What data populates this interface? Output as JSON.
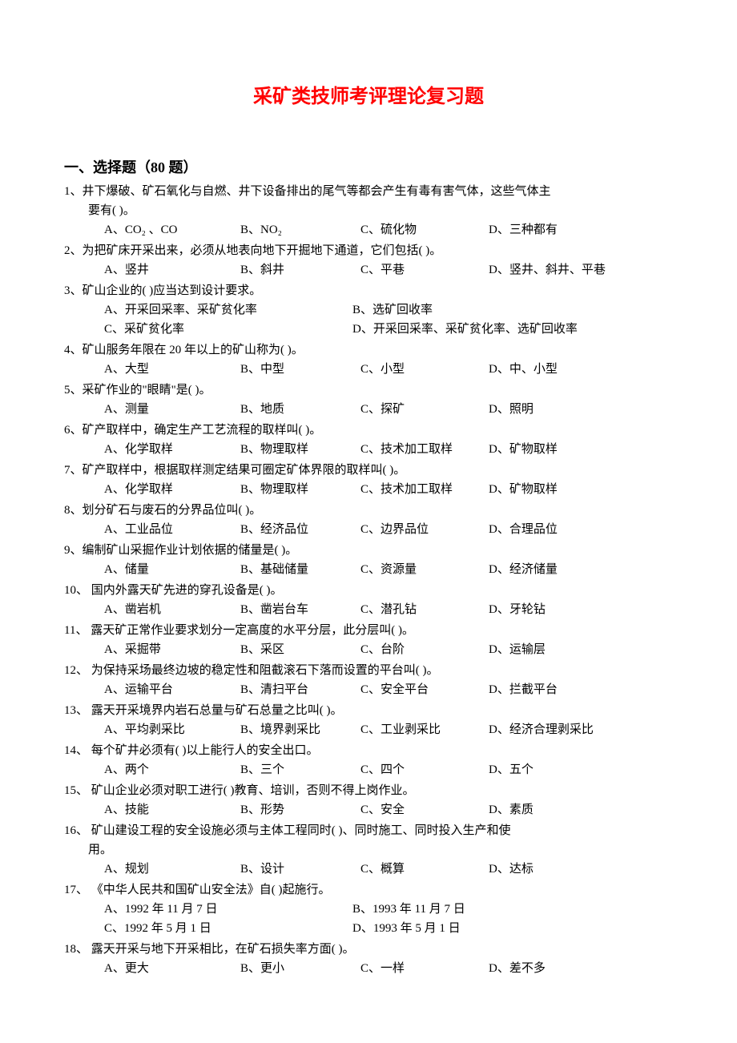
{
  "colors": {
    "title_color": "#ff0000",
    "text_color": "#000000",
    "background": "#ffffff"
  },
  "typography": {
    "title_fontsize": 24,
    "section_fontsize": 18,
    "body_fontsize": 15,
    "font_family": "SimSun"
  },
  "title": "采矿类技师考评理论复习题",
  "section_header": "一、选择题（80 题）",
  "questions": [
    {
      "num": "1、",
      "text": "井下爆破、矿石氧化与自燃、井下设备排出的尾气等都会产生有毒有害气体，这些气体主",
      "text2": "要有(        )。",
      "layout": "4col",
      "opts": [
        "A、CO₂ 、CO",
        "B、NO₂",
        "C、硫化物",
        "D、三种都有"
      ]
    },
    {
      "num": "2、",
      "text": "为把矿床开采出来，必须从地表向地下开掘地下通道，它们包括(        )。",
      "layout": "4col",
      "opts": [
        "A、竖井",
        "B、斜井",
        "C、平巷",
        "D、竖井、斜井、平巷"
      ]
    },
    {
      "num": "3、",
      "text": "矿山企业的(        )应当达到设计要求。",
      "layout": "2col",
      "opts": [
        "A、开采回采率、采矿贫化率",
        "B、选矿回收率",
        "C、采矿贫化率",
        "D、开采回采率、采矿贫化率、选矿回收率"
      ]
    },
    {
      "num": "4、",
      "text": "矿山服务年限在 20 年以上的矿山称为(        )。",
      "layout": "4col",
      "opts": [
        "A、大型",
        "B、中型",
        "C、小型",
        "D、中、小型"
      ]
    },
    {
      "num": "5、",
      "text": "采矿作业的\"眼睛\"是(        )。",
      "layout": "4col",
      "opts": [
        "A、测量",
        "B、地质",
        "C、探矿",
        "D、照明"
      ]
    },
    {
      "num": "6、",
      "text": "矿产取样中，确定生产工艺流程的取样叫(        )。",
      "layout": "4col",
      "opts": [
        "A、化学取样",
        "B、物理取样",
        "C、技术加工取样",
        "D、矿物取样"
      ]
    },
    {
      "num": "7、",
      "text": "矿产取样中，根据取样测定结果可圈定矿体界限的取样叫(        )。",
      "layout": "4col",
      "opts": [
        "A、化学取样",
        "B、物理取样",
        "C、技术加工取样",
        "D、矿物取样"
      ]
    },
    {
      "num": "8、",
      "text": "划分矿石与废石的分界品位叫(        )。",
      "layout": "4col",
      "opts": [
        "A、工业品位",
        "B、经济品位",
        "C、边界品位",
        "D、合理品位"
      ]
    },
    {
      "num": "9、",
      "text": "编制矿山采掘作业计划依据的储量是(        )。",
      "layout": "4col",
      "opts": [
        "A、储量",
        "B、基础储量",
        "C、资源量",
        "D、经济储量"
      ]
    },
    {
      "num": "10、",
      "text": " 国内外露天矿先进的穿孔设备是(        )。",
      "layout": "4col",
      "opts": [
        "A、凿岩机",
        "B、凿岩台车",
        "C、潜孔钻",
        "D、牙轮钻"
      ]
    },
    {
      "num": "11、",
      "text": " 露天矿正常作业要求划分一定高度的水平分层，此分层叫(        )。",
      "layout": "4col",
      "opts": [
        "A、采掘带",
        "B、采区",
        "C、台阶",
        "D、运输层"
      ]
    },
    {
      "num": "12、",
      "text": " 为保持采场最终边坡的稳定性和阻截滚石下落而设置的平台叫(        )。",
      "layout": "4col",
      "opts": [
        "A、运输平台",
        "B、清扫平台",
        "C、安全平台",
        "D、拦截平台"
      ]
    },
    {
      "num": "13、",
      "text": " 露天开采境界内岩石总量与矿石总量之比叫(        )。",
      "layout": "4col",
      "opts": [
        "A、平均剥采比",
        "B、境界剥采比",
        "C、工业剥采比",
        "D、经济合理剥采比"
      ]
    },
    {
      "num": "14、",
      "text": " 每个矿井必须有(        )以上能行人的安全出口。",
      "layout": "4col",
      "opts": [
        "A、两个",
        "B、三个",
        "C、四个",
        "D、五个"
      ]
    },
    {
      "num": "15、",
      "text": " 矿山企业必须对职工进行(        )教育、培训，否则不得上岗作业。",
      "layout": "4col",
      "opts": [
        "A、技能",
        "B、形势",
        "C、安全",
        "D、素质"
      ]
    },
    {
      "num": "16、",
      "text": " 矿山建设工程的安全设施必须与主体工程同时(        )、同时施工、同时投入生产和使",
      "text2": "用。",
      "layout": "4col",
      "opts": [
        "A、规划",
        "B、设计",
        "C、概算",
        "D、达标"
      ]
    },
    {
      "num": "17、",
      "text": " 《中华人民共和国矿山安全法》自(        )起施行。",
      "layout": "2col",
      "opts": [
        "A、1992 年 11 月 7 日",
        "B、1993 年 11 月 7 日",
        "C、1992 年 5 月 1 日",
        "D、1993 年 5 月 1 日"
      ]
    },
    {
      "num": "18、",
      "text": " 露天开采与地下开采相比，在矿石损失率方面(        )。",
      "layout": "4col",
      "opts": [
        "A、更大",
        "B、更小",
        "C、一样",
        "D、差不多"
      ]
    }
  ]
}
